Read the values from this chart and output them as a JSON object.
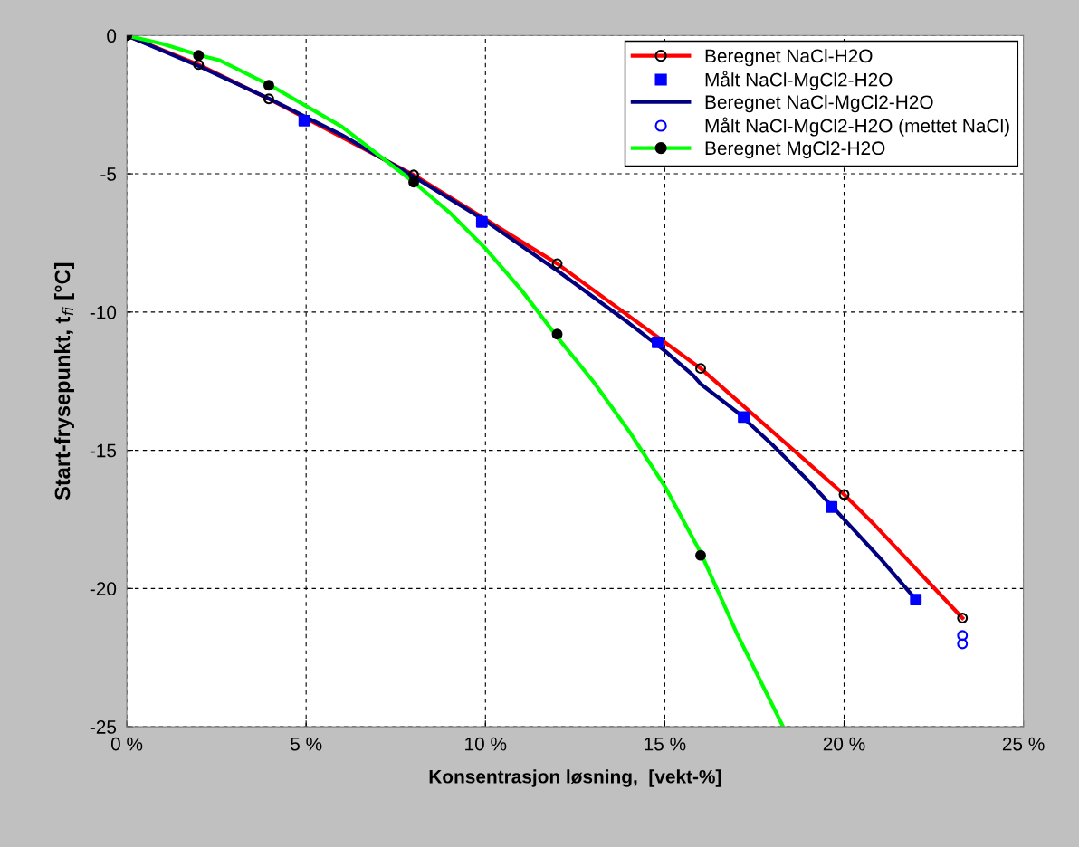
{
  "chart_data": {
    "type": "line",
    "xlabel": "Konsentrasjon løsning,  [vekt-%]",
    "ylabel": "Start-frysepunkt, t$_{fi}$ [°C]",
    "xlim": [
      0,
      25
    ],
    "ylim": [
      -25,
      0
    ],
    "xticks": [
      {
        "value": 0,
        "label": "0 %"
      },
      {
        "value": 5,
        "label": "5 %"
      },
      {
        "value": 10,
        "label": "10 %"
      },
      {
        "value": 15,
        "label": "15 %"
      },
      {
        "value": 20,
        "label": "20 %"
      },
      {
        "value": 25,
        "label": "25 %"
      }
    ],
    "yticks": [
      -25,
      -20,
      -15,
      -10,
      -5,
      0
    ],
    "grid": true,
    "legend": "top right",
    "line_style": "solid",
    "series": [
      {
        "name": "Beregnet NaCl-H2O",
        "color": "#ff0000",
        "marker": "none",
        "x": [
          0,
          2,
          3.96,
          8,
          12,
          16,
          20,
          20.85,
          23.3
        ],
        "values": [
          0,
          -1.05,
          -2.29,
          -5.04,
          -8.25,
          -12.04,
          -16.6,
          -17.7,
          -21.07
        ]
      },
      {
        "type": "scatter",
        "color": "#000000",
        "marker": "circle",
        "x": [
          0,
          2,
          3.96,
          8,
          12,
          16,
          20,
          23.3
        ],
        "values": [
          0,
          -1.05,
          -2.29,
          -5.04,
          -8.25,
          -12.04,
          -16.6,
          -21.07
        ]
      },
      {
        "name": "Målt NaCl-MgCl2-H2O",
        "type": "scatter",
        "color": "#0000ff",
        "marker": "square",
        "x": [
          4.95,
          9.9,
          14.8,
          17.2,
          19.65,
          22.0
        ],
        "values": [
          -3.08,
          -6.74,
          -11.1,
          -13.8,
          -17.05,
          -20.4
        ]
      },
      {
        "name": "Beregnet NaCl-MgCl2-H2O",
        "color": "#000080",
        "marker": "none",
        "x": [
          0,
          2,
          4,
          6,
          8,
          10,
          12,
          14,
          15,
          15.8,
          16,
          17,
          18,
          19,
          20,
          21,
          22
        ],
        "values": [
          0,
          -1.1,
          -2.3,
          -3.6,
          -5.1,
          -6.7,
          -8.5,
          -10.4,
          -11.4,
          -12.3,
          -12.6,
          -13.6,
          -14.8,
          -16.1,
          -17.5,
          -18.9,
          -20.4
        ]
      },
      {
        "name": "Målt NaCl-MgCl2-H2O (mettet NaCl)",
        "type": "scatter",
        "color": "#0000ff",
        "marker": "circle",
        "x": [
          23.3,
          23.3
        ],
        "values": [
          -21.7,
          -22.0
        ]
      },
      {
        "name": "Beregnet MgCl2-H2O",
        "color": "#00ff00",
        "marker": "none",
        "x": [
          0,
          1,
          2,
          2.6,
          4,
          6,
          8,
          9,
          10,
          11,
          12,
          13,
          14,
          15,
          16,
          17,
          18.3
        ],
        "values": [
          0,
          -0.3,
          -0.7,
          -0.9,
          -1.8,
          -3.3,
          -5.3,
          -6.4,
          -7.7,
          -9.2,
          -10.9,
          -12.5,
          -14.3,
          -16.3,
          -18.7,
          -21.6,
          -25
        ]
      },
      {
        "type": "scatter",
        "color": "#000000",
        "colors": [
          "#000000",
          "#000000",
          "#000000",
          "#000000",
          "#000000",
          "#000000"
        ],
        "marker": "circle",
        "x": [
          0,
          2,
          3.96,
          8,
          12,
          16
        ],
        "values": [
          0,
          -0.72,
          -1.8,
          -5.3,
          -10.8,
          -18.8
        ]
      }
    ]
  }
}
